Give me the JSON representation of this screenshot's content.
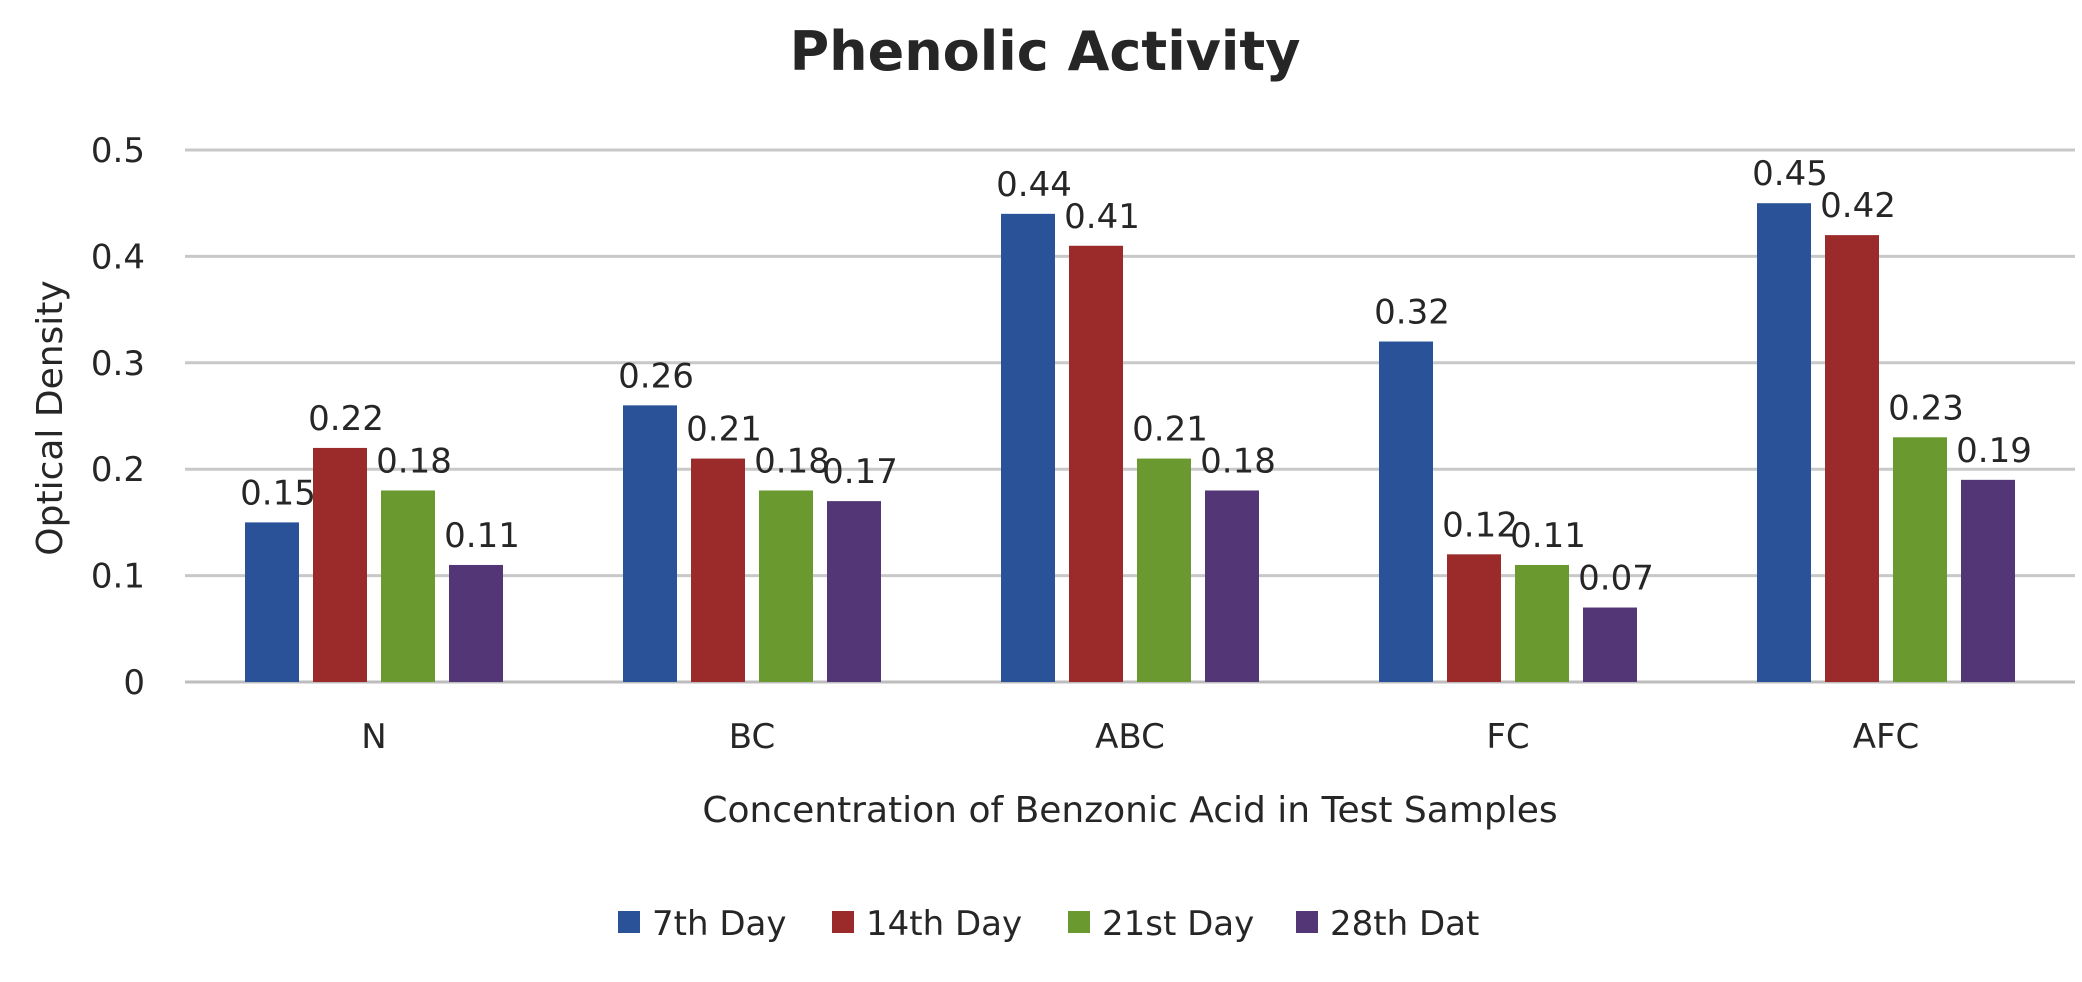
{
  "chart_data": {
    "type": "bar",
    "title": "Phenolic Activity",
    "xlabel": "Concentration of Benzonic Acid in Test Samples",
    "ylabel": "Optical Density",
    "categories": [
      "N",
      "BC",
      "ABC",
      "FC",
      "AFC"
    ],
    "series": [
      {
        "name": "7th Day",
        "color": "#2a5298",
        "values": [
          0.15,
          0.26,
          0.44,
          0.32,
          0.45
        ],
        "labels": [
          "0.15",
          "0.26",
          "0.44",
          "0.32",
          "0.45"
        ]
      },
      {
        "name": "14th Day",
        "color": "#9b2a2a",
        "values": [
          0.22,
          0.21,
          0.41,
          0.12,
          0.42
        ],
        "labels": [
          "0.22",
          "0.21",
          "0.41",
          "0.12",
          "0.42"
        ]
      },
      {
        "name": "21st Day",
        "color": "#6a992f",
        "values": [
          0.18,
          0.18,
          0.21,
          0.11,
          0.23
        ],
        "labels": [
          "0.18",
          "0.18",
          "0.21",
          "0.11",
          "0.23"
        ]
      },
      {
        "name": "28th Dat",
        "color": "#523675",
        "values": [
          0.11,
          0.17,
          0.18,
          0.07,
          0.19
        ],
        "labels": [
          "0.11",
          "0.17",
          "0.18",
          "0.07",
          "0.19"
        ]
      }
    ],
    "ylim": [
      0,
      0.5
    ],
    "yticks": [
      0,
      0.1,
      0.2,
      0.3,
      0.4,
      0.5
    ],
    "ytick_labels": [
      "0",
      "0.1",
      "0.2",
      "0.3",
      "0.4",
      "0.5"
    ],
    "grid": true,
    "legend_position": "bottom"
  }
}
